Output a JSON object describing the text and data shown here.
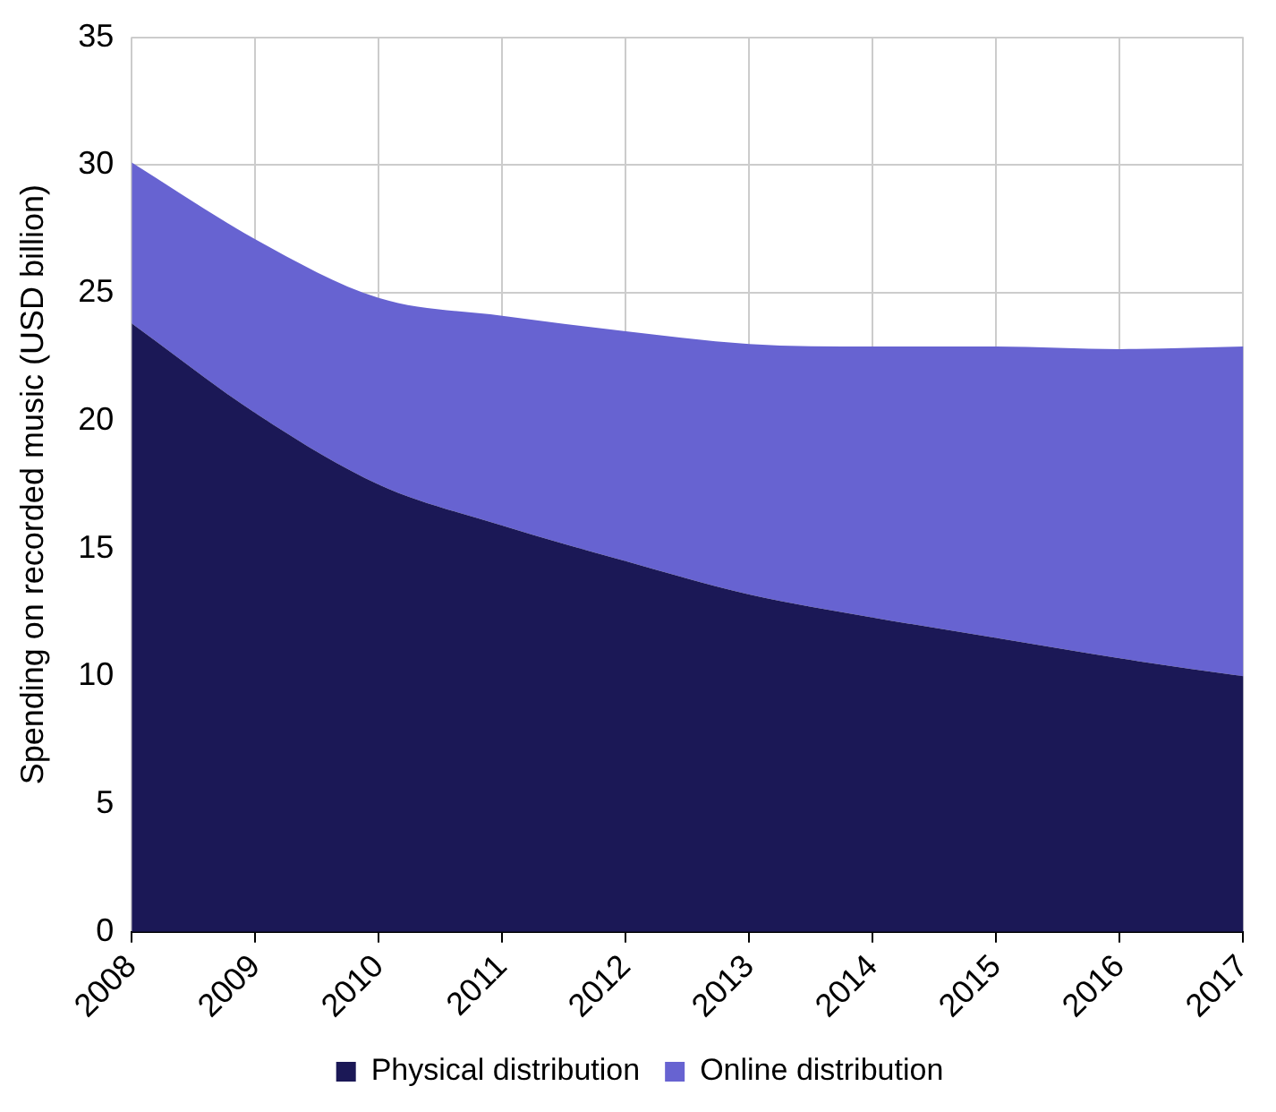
{
  "chart_data": {
    "type": "area",
    "ylabel": "Spending on recorded music (USD billion)",
    "categories": [
      "2008",
      "2009",
      "2010",
      "2011",
      "2012",
      "2013",
      "2014",
      "2015",
      "2016",
      "2017"
    ],
    "series": [
      {
        "name": "Physical distribution",
        "color": "#1b1856",
        "values": [
          23.8,
          20.3,
          17.5,
          15.9,
          14.5,
          13.2,
          12.3,
          11.5,
          10.7,
          10.0
        ]
      },
      {
        "name": "Online distribution",
        "color": "#6763d1",
        "values": [
          6.3,
          6.8,
          7.3,
          8.2,
          9.0,
          9.8,
          10.6,
          11.4,
          12.1,
          12.9
        ]
      }
    ],
    "stacked": true,
    "ylim": [
      0,
      35
    ],
    "yticks": [
      0,
      5,
      10,
      15,
      20,
      25,
      30,
      35
    ],
    "grid": true,
    "legend": "bottom"
  }
}
